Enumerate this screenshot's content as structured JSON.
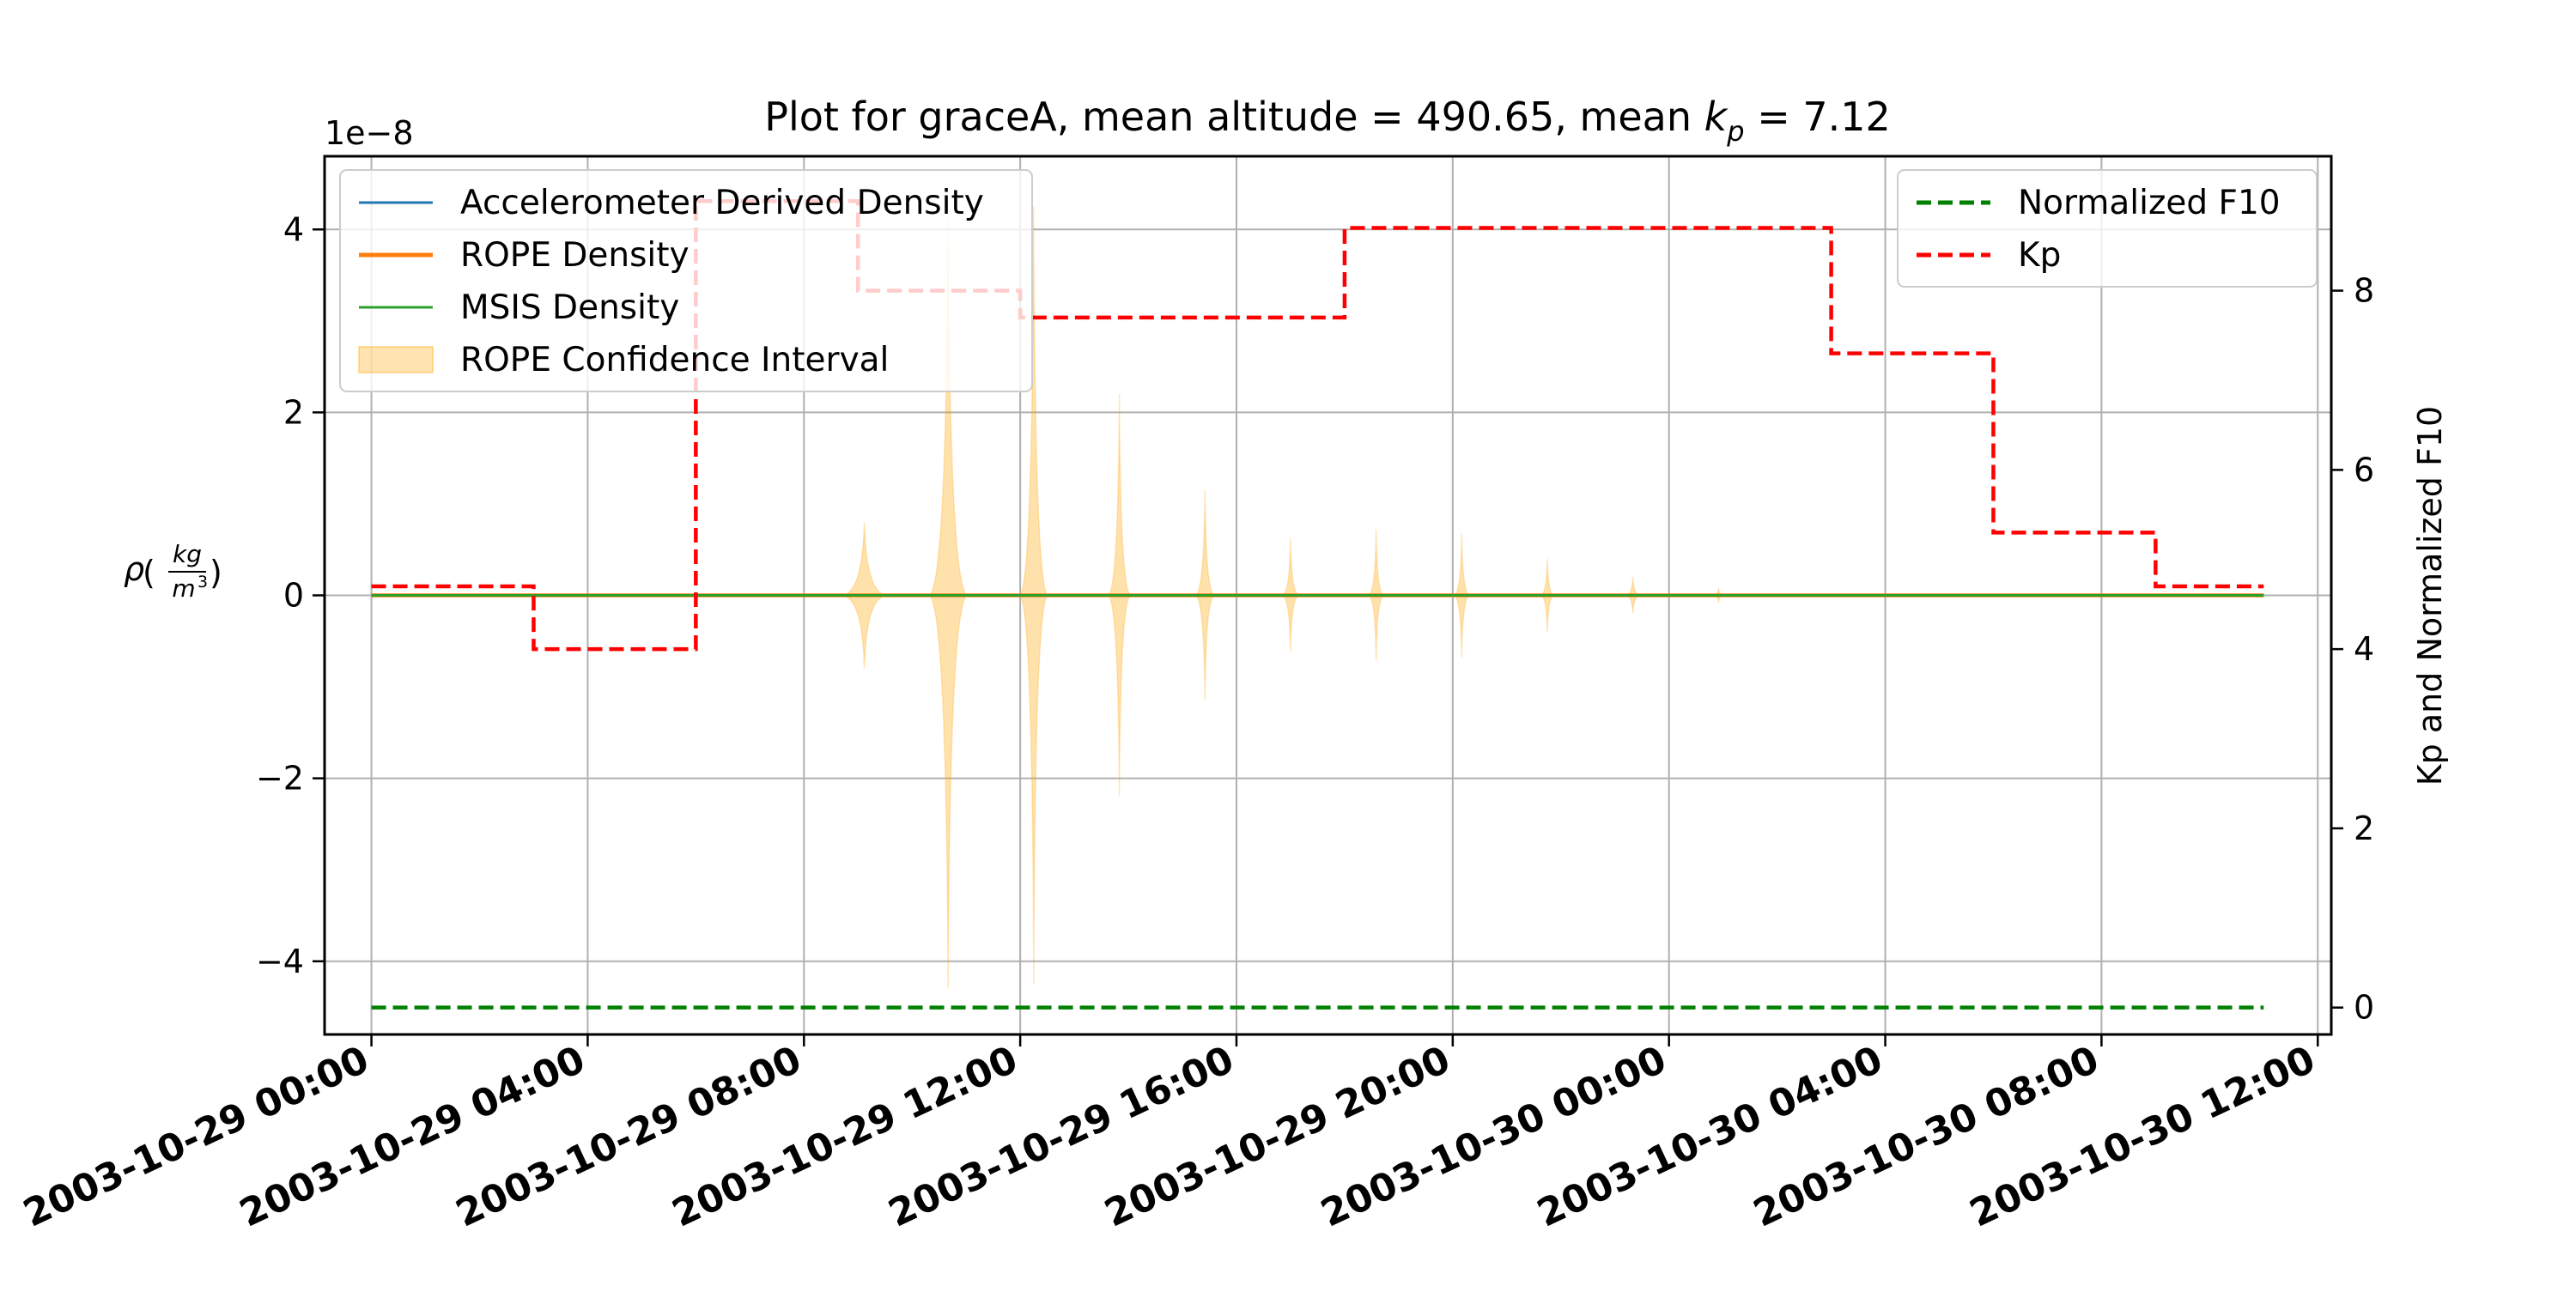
{
  "chart_data": {
    "type": "line",
    "title": "Plot for graceA, mean altitude = 490.65, mean k_p = 7.12",
    "title_parts": {
      "prefix": "Plot for graceA, mean altitude = 490.65, mean ",
      "k": "k",
      "p": "p",
      "suffix": " = 7.12"
    },
    "ylabel_left": {
      "rho": "ρ",
      "num": "kg",
      "den": "m",
      "den_exp": "3"
    },
    "ylabel_right": "Kp and Normalized F10",
    "left_axis": {
      "multiplier_label": "1e−8",
      "ylim": [
        -4.8,
        4.8
      ],
      "ticks": [
        -4,
        -2,
        0,
        2,
        4
      ],
      "tick_labels": [
        "−4",
        "−2",
        "0",
        "2",
        "4"
      ]
    },
    "right_axis": {
      "ylim": [
        -0.3,
        9.5
      ],
      "ticks": [
        0,
        2,
        4,
        6,
        8
      ],
      "tick_labels": [
        "0",
        "2",
        "4",
        "6",
        "8"
      ]
    },
    "x_axis": {
      "type": "datetime",
      "range": [
        "2003-10-28 23:08",
        "2003-10-30 12:15"
      ],
      "ticks": [
        "2003-10-29 00:00",
        "2003-10-29 04:00",
        "2003-10-29 08:00",
        "2003-10-29 12:00",
        "2003-10-29 16:00",
        "2003-10-29 20:00",
        "2003-10-30 00:00",
        "2003-10-30 04:00",
        "2003-10-30 08:00",
        "2003-10-30 12:00"
      ],
      "tick_labels": [
        "2003-10-29 00:00",
        "2003-10-29 04:00",
        "2003-10-29 08:00",
        "2003-10-29 12:00",
        "2003-10-29 16:00",
        "2003-10-29 20:00",
        "2003-10-30 00:00",
        "2003-10-30 04:00",
        "2003-10-30 08:00",
        "2003-10-30 12:00"
      ]
    },
    "grid": true,
    "legend_left": {
      "placement": "upper-left",
      "entries": [
        {
          "label": "Accelerometer Derived Density",
          "color": "#1f77b4",
          "style": "line"
        },
        {
          "label": "ROPE Density",
          "color": "#ff7f0e",
          "style": "thick-line"
        },
        {
          "label": "MSIS Density",
          "color": "#2ca02c",
          "style": "line"
        },
        {
          "label": "ROPE Confidence Interval",
          "color": "#ffa500",
          "style": "patch"
        }
      ]
    },
    "legend_right": {
      "placement": "upper-right",
      "entries": [
        {
          "label": "Normalized F10",
          "color": "#008000",
          "style": "dashed"
        },
        {
          "label": "Kp",
          "color": "#ff0000",
          "style": "dashed"
        }
      ]
    },
    "series": [
      {
        "name": "Accelerometer Derived Density",
        "axis": "left",
        "color": "#1f77b4",
        "x": [
          "2003-10-29 00:00",
          "2003-10-30 11:00"
        ],
        "y": [
          0,
          0
        ]
      },
      {
        "name": "ROPE Density",
        "axis": "left",
        "color": "#ff7f0e",
        "x": [
          "2003-10-29 00:00",
          "2003-10-30 11:00"
        ],
        "y": [
          0,
          0
        ]
      },
      {
        "name": "MSIS Density",
        "axis": "left",
        "color": "#2ca02c",
        "x": [
          "2003-10-29 00:00",
          "2003-10-30 11:00"
        ],
        "y": [
          0,
          0
        ]
      },
      {
        "name": "Normalized F10",
        "axis": "right",
        "color": "#008000",
        "style": "dashed",
        "x": [
          "2003-10-29 00:00",
          "2003-10-30 11:00"
        ],
        "y": [
          0,
          0
        ]
      },
      {
        "name": "Kp",
        "axis": "right",
        "color": "#ff0000",
        "style": "step-dashed",
        "x": [
          "2003-10-29 00:00",
          "2003-10-29 03:00",
          "2003-10-29 06:00",
          "2003-10-29 09:00",
          "2003-10-29 12:00",
          "2003-10-29 18:00",
          "2003-10-30 03:00",
          "2003-10-30 06:00",
          "2003-10-30 09:00",
          "2003-10-30 11:00"
        ],
        "y": [
          4.7,
          4.0,
          9.0,
          8.0,
          7.7,
          8.7,
          7.3,
          5.3,
          4.7,
          4.7
        ]
      },
      {
        "name": "ROPE Confidence Interval",
        "axis": "left",
        "color": "#ffa500",
        "style": "band-spikes",
        "spikes": [
          {
            "t": "2003-10-29 09:07",
            "upper": 0.8,
            "lower": -0.8,
            "half_width_min": 26
          },
          {
            "t": "2003-10-29 10:40",
            "upper": 4.1,
            "lower": -4.3,
            "half_width_min": 22
          },
          {
            "t": "2003-10-29 12:15",
            "upper": 4.25,
            "lower": -4.25,
            "half_width_min": 16
          },
          {
            "t": "2003-10-29 13:50",
            "upper": 2.2,
            "lower": -2.2,
            "half_width_min": 13
          },
          {
            "t": "2003-10-29 15:25",
            "upper": 1.15,
            "lower": -1.15,
            "half_width_min": 11
          },
          {
            "t": "2003-10-29 17:00",
            "upper": 0.62,
            "lower": -0.62,
            "half_width_min": 10
          },
          {
            "t": "2003-10-29 18:35",
            "upper": 0.72,
            "lower": -0.72,
            "half_width_min": 9
          },
          {
            "t": "2003-10-29 20:10",
            "upper": 0.68,
            "lower": -0.68,
            "half_width_min": 9
          },
          {
            "t": "2003-10-29 21:45",
            "upper": 0.4,
            "lower": -0.4,
            "half_width_min": 8
          },
          {
            "t": "2003-10-29 23:20",
            "upper": 0.2,
            "lower": -0.2,
            "half_width_min": 8
          },
          {
            "t": "2003-10-30 00:55",
            "upper": 0.08,
            "lower": -0.08,
            "half_width_min": 6
          },
          {
            "t": "2003-10-30 02:30",
            "upper": 0.02,
            "lower": -0.02,
            "half_width_min": 5
          }
        ]
      }
    ]
  }
}
